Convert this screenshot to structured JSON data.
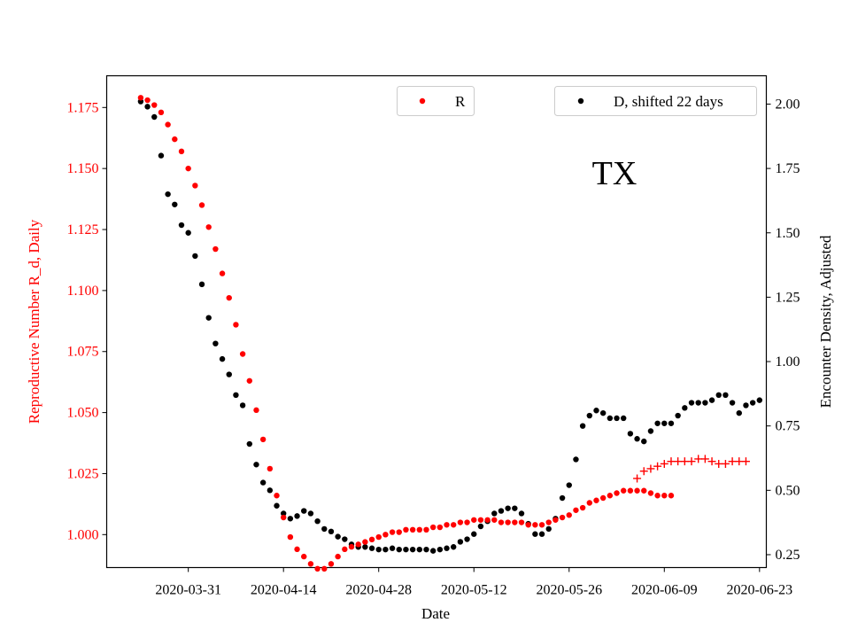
{
  "chart_data": {
    "type": "scatter",
    "annotation": "TX",
    "xlabel": "Date",
    "ylabel_left": "Reproductive Number R_d, Daily",
    "ylabel_right": "Encounter Density, Adjusted",
    "x_range": [
      "2020-03-19",
      "2020-06-24"
    ],
    "x_ticks": [
      "2020-03-31",
      "2020-04-14",
      "2020-04-28",
      "2020-05-12",
      "2020-05-26",
      "2020-06-09",
      "2020-06-23"
    ],
    "y_left_range": [
      0.9865,
      1.188
    ],
    "y_left_ticks": [
      "1.000",
      "1.025",
      "1.050",
      "1.075",
      "1.100",
      "1.125",
      "1.150",
      "1.175"
    ],
    "y_right_range": [
      0.2,
      2.11
    ],
    "y_right_ticks": [
      "0.25",
      "0.50",
      "0.75",
      "1.00",
      "1.25",
      "1.50",
      "1.75",
      "2.00"
    ],
    "grid": false,
    "colors": {
      "R": "#ff0000",
      "D": "#000000",
      "left_axis": "#ff0000",
      "right_axis": "#000000"
    },
    "legend": [
      {
        "label": "R",
        "color": "#ff0000",
        "position": "top-center"
      },
      {
        "label": "D, shifted 22 days",
        "color": "#000000",
        "position": "top-right"
      }
    ],
    "series": [
      {
        "name": "R",
        "axis": "left",
        "marker": "dot",
        "start_date": "2020-03-24",
        "y": [
          1.179,
          1.178,
          1.176,
          1.173,
          1.168,
          1.162,
          1.157,
          1.15,
          1.143,
          1.135,
          1.126,
          1.117,
          1.107,
          1.097,
          1.086,
          1.074,
          1.063,
          1.051,
          1.039,
          1.027,
          1.016,
          1.007,
          0.999,
          0.994,
          0.991,
          0.988,
          0.986,
          0.986,
          0.988,
          0.991,
          0.994,
          0.995,
          0.996,
          0.997,
          0.998,
          0.999,
          1.0,
          1.001,
          1.001,
          1.002,
          1.002,
          1.002,
          1.002,
          1.003,
          1.003,
          1.004,
          1.004,
          1.005,
          1.005,
          1.006,
          1.006,
          1.006,
          1.006,
          1.005,
          1.005,
          1.005,
          1.005,
          1.004,
          1.004,
          1.004,
          1.005,
          1.006,
          1.007,
          1.008,
          1.01,
          1.011,
          1.013,
          1.014,
          1.015,
          1.016,
          1.017,
          1.018,
          1.018,
          1.018,
          1.018,
          1.017,
          1.016,
          1.016,
          1.016
        ]
      },
      {
        "name": "R",
        "axis": "left",
        "marker": "plus",
        "start_date": "2020-06-05",
        "y": [
          1.023,
          1.026,
          1.027,
          1.028,
          1.029,
          1.03,
          1.03,
          1.03,
          1.03,
          1.031,
          1.031,
          1.03,
          1.029,
          1.029,
          1.03,
          1.03,
          1.03
        ]
      },
      {
        "name": "D, shifted 22 days",
        "axis": "right",
        "marker": "dot",
        "start_date": "2020-03-24",
        "y": [
          2.01,
          1.99,
          1.95,
          1.8,
          1.65,
          1.61,
          1.53,
          1.5,
          1.41,
          1.3,
          1.17,
          1.07,
          1.01,
          0.95,
          0.87,
          0.83,
          0.68,
          0.6,
          0.53,
          0.5,
          0.44,
          0.41,
          0.39,
          0.4,
          0.42,
          0.41,
          0.38,
          0.35,
          0.34,
          0.32,
          0.31,
          0.29,
          0.28,
          0.28,
          0.275,
          0.27,
          0.27,
          0.275,
          0.27,
          0.27,
          0.27,
          0.27,
          0.27,
          0.265,
          0.27,
          0.275,
          0.28,
          0.3,
          0.31,
          0.33,
          0.36,
          0.38,
          0.41,
          0.42,
          0.43,
          0.43,
          0.41,
          0.37,
          0.33,
          0.33,
          0.35,
          0.39,
          0.47,
          0.52,
          0.62,
          0.75,
          0.79,
          0.81,
          0.8,
          0.78,
          0.78,
          0.78,
          0.72,
          0.7,
          0.69,
          0.73,
          0.76,
          0.76,
          0.76,
          0.79,
          0.82,
          0.84,
          0.84,
          0.84,
          0.85,
          0.87,
          0.87,
          0.84,
          0.8,
          0.83,
          0.84,
          0.85
        ]
      }
    ]
  }
}
